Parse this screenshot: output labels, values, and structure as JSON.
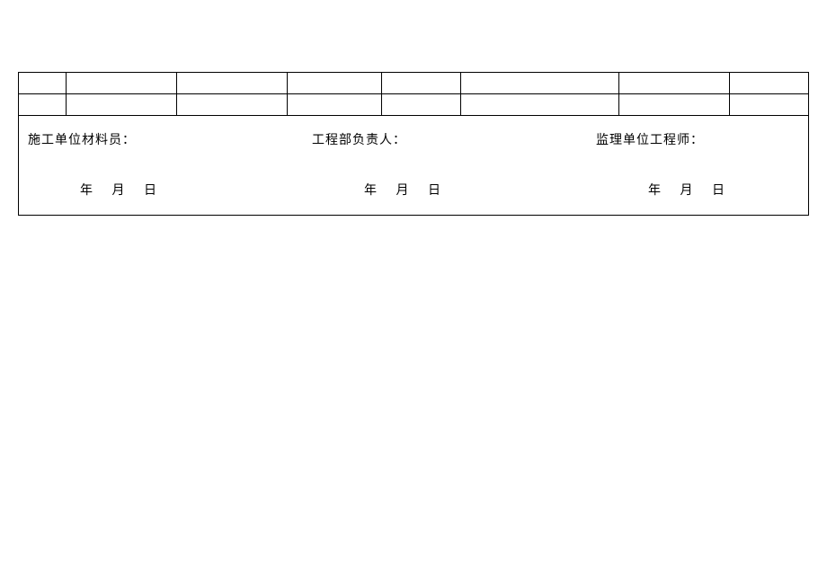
{
  "signatures": {
    "sig1": {
      "label": "施工单位材料员：",
      "year": "年",
      "month": "月",
      "day": "日"
    },
    "sig2": {
      "label": "工程部负责人：",
      "year": "年",
      "month": "月",
      "day": "日"
    },
    "sig3": {
      "label": "监理单位工程师：",
      "year": "年",
      "month": "月",
      "day": "日"
    }
  },
  "table": {
    "rows": 2,
    "cols": 8
  }
}
